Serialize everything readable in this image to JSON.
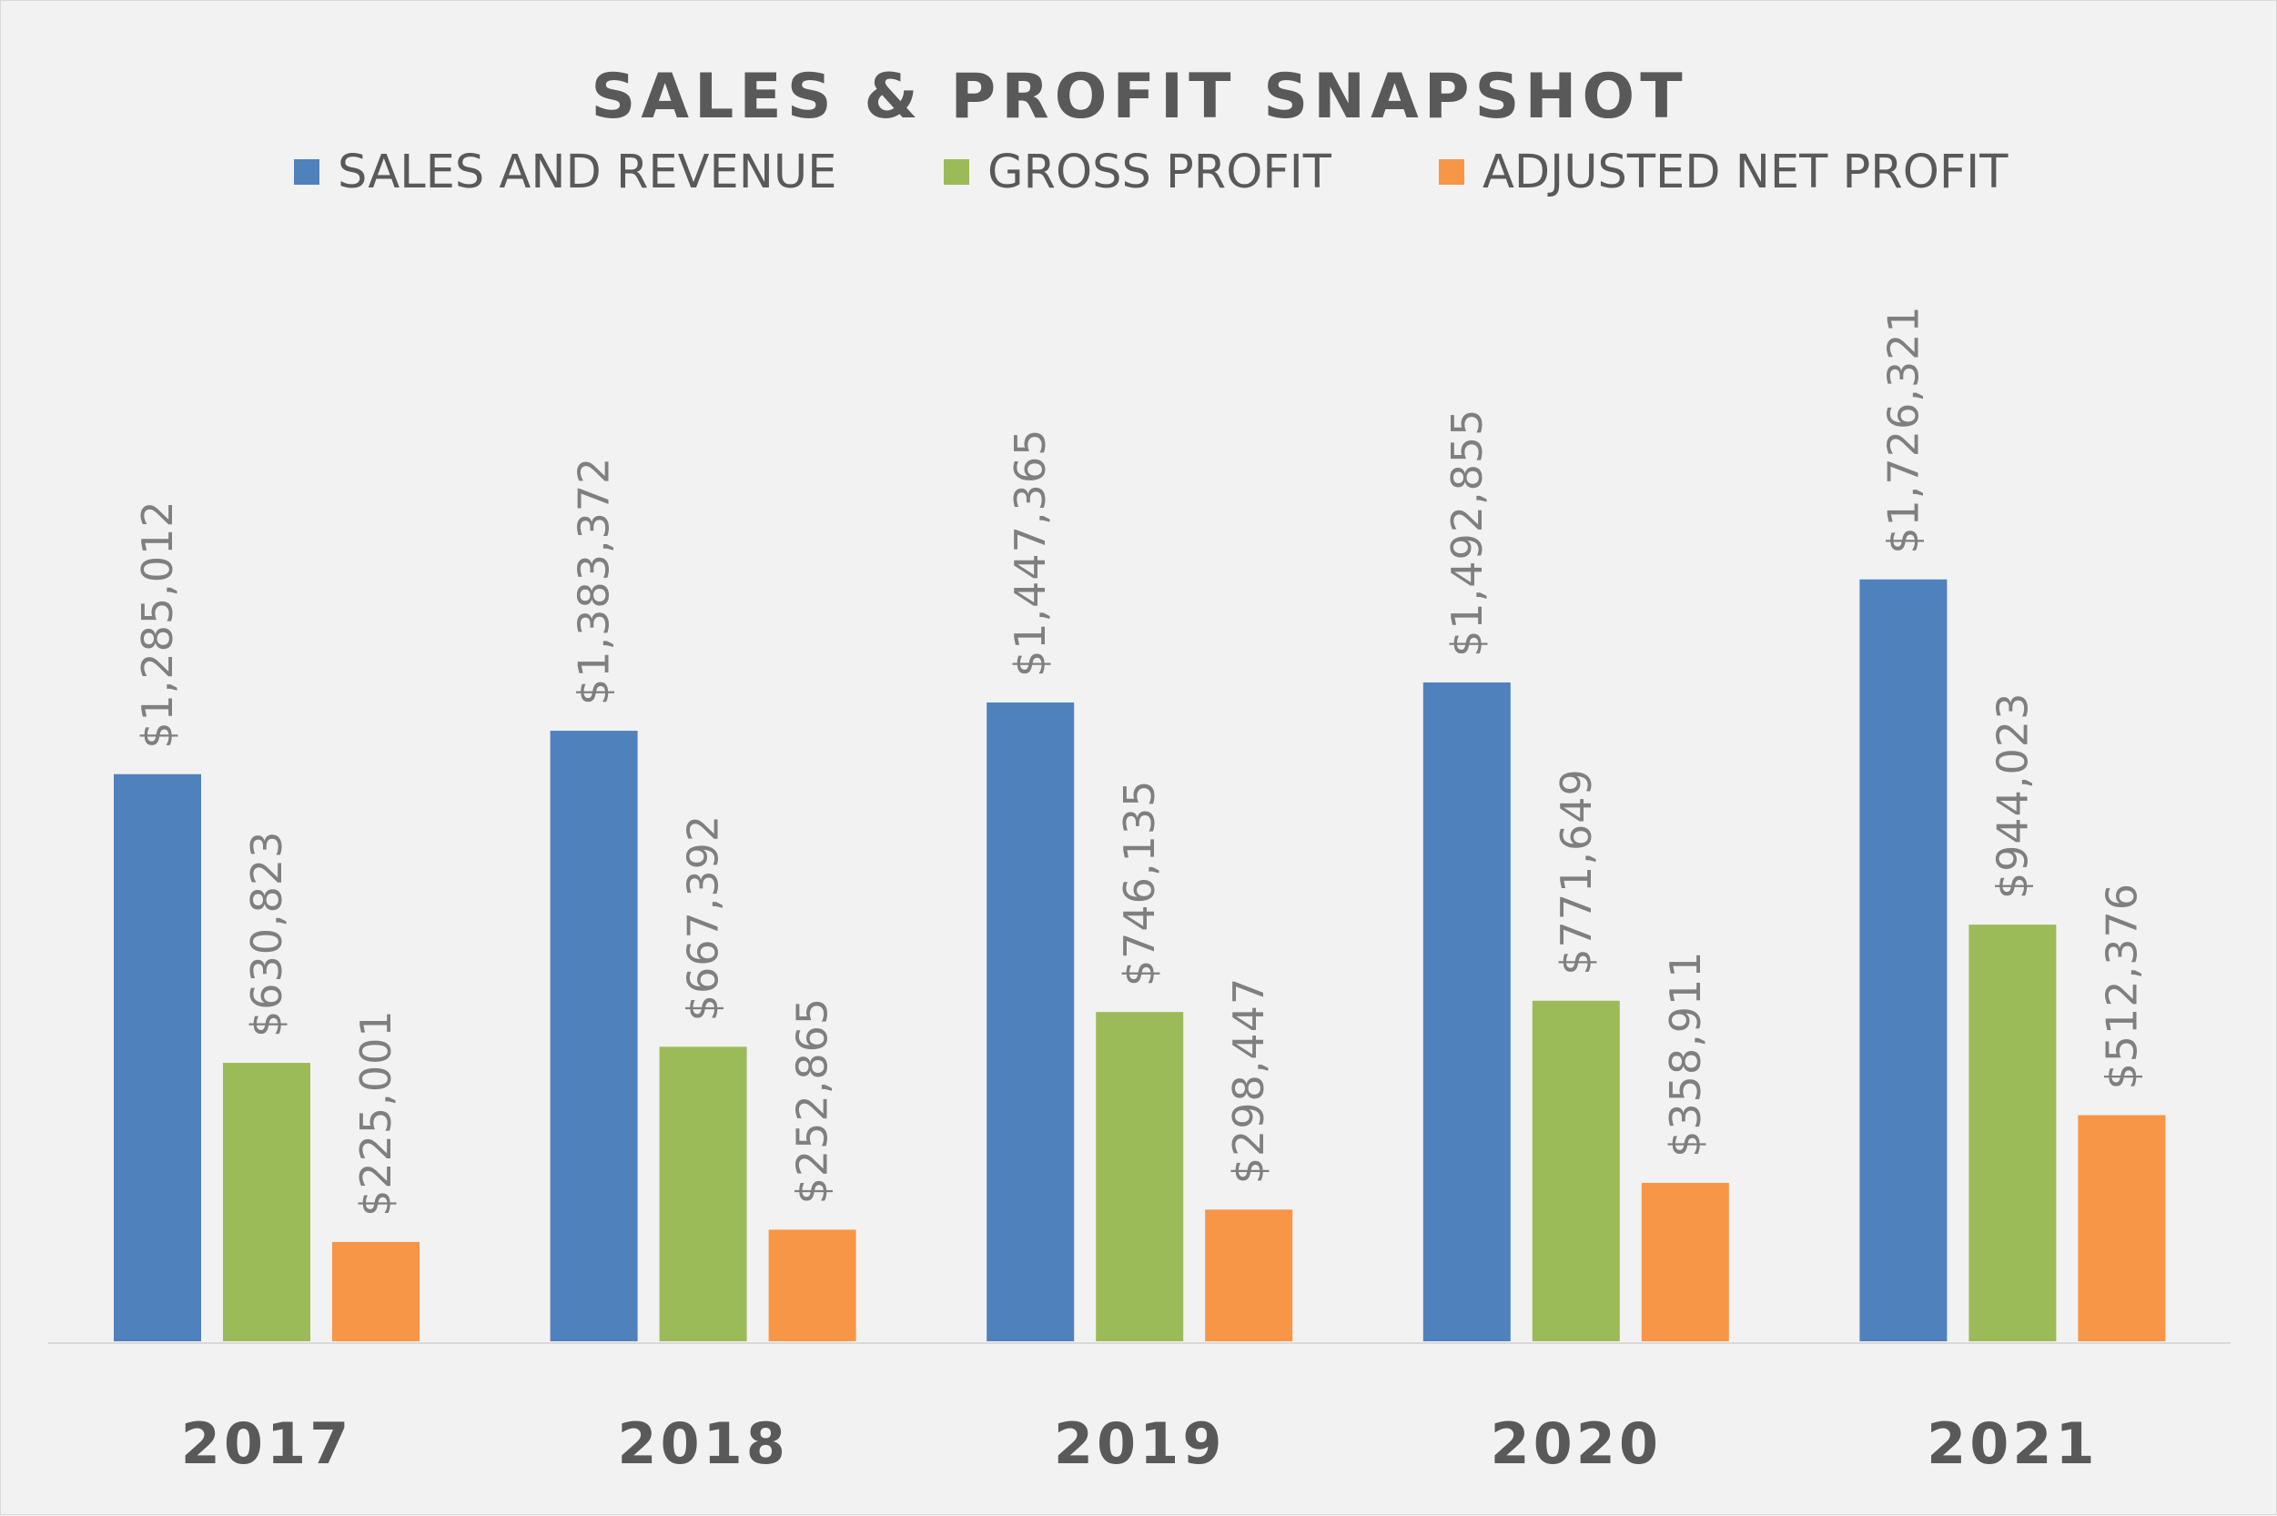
{
  "chart_data": {
    "type": "bar",
    "title": "SALES & PROFIT SNAPSHOT",
    "xlabel": "",
    "ylabel": "",
    "categories": [
      "2017",
      "2018",
      "2019",
      "2020",
      "2021"
    ],
    "series": [
      {
        "name": "SALES AND REVENUE",
        "color": "#4f81bd",
        "values": [
          1285012,
          1383372,
          1447365,
          1492855,
          1726321
        ],
        "labels": [
          "$1,285,012",
          "$1,383,372",
          "$1,447,365",
          "$1,492,855",
          "$1,726,321"
        ]
      },
      {
        "name": "GROSS PROFIT",
        "color": "#9bbb59",
        "values": [
          630823,
          667392,
          746135,
          771649,
          944023
        ],
        "labels": [
          "$630,823",
          "$667,392",
          "$746,135",
          "$771,649",
          "$944,023"
        ]
      },
      {
        "name": "ADJUSTED NET PROFIT",
        "color": "#f79646",
        "values": [
          225001,
          252865,
          298447,
          358911,
          512376
        ],
        "labels": [
          "$225,001",
          "$252,865",
          "$298,447",
          "$358,911",
          "$512,376"
        ]
      }
    ],
    "ylim": [
      0,
      2000000
    ],
    "grid": false,
    "legend_position": "top",
    "axis_color": "#d9d9d9"
  }
}
